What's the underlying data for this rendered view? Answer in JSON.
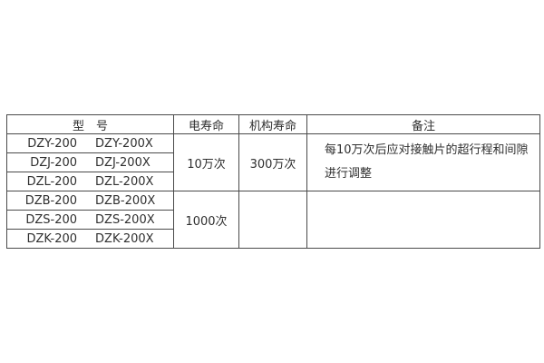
{
  "table": {
    "headers": {
      "model": "型　号",
      "electrical_life": "电寿命",
      "mechanical_life": "机构寿命",
      "remarks": "备注"
    },
    "model_rows": [
      {
        "model_a": "DZY-200",
        "model_b": "DZY-200X"
      },
      {
        "model_a": "DZJ-200",
        "model_b": "DZJ-200X"
      },
      {
        "model_a": "DZL-200",
        "model_b": "DZL-200X"
      },
      {
        "model_a": "DZB-200",
        "model_b": "DZB-200X"
      },
      {
        "model_a": "DZS-200",
        "model_b": "DZS-200X"
      },
      {
        "model_a": "DZK-200",
        "model_b": "DZK-200X"
      }
    ],
    "electrical_life_groups": [
      "10万次",
      "1000次"
    ],
    "mechanical_life_groups": [
      "300万次",
      ""
    ],
    "remarks_group1": {
      "line1": "每10万次后应对接触片的超行程和间隙",
      "line2": "进行调整"
    },
    "remarks_group2": ""
  },
  "colors": {
    "border": "#4a4a4a",
    "text": "#2f2f2f",
    "background": "#ffffff"
  }
}
